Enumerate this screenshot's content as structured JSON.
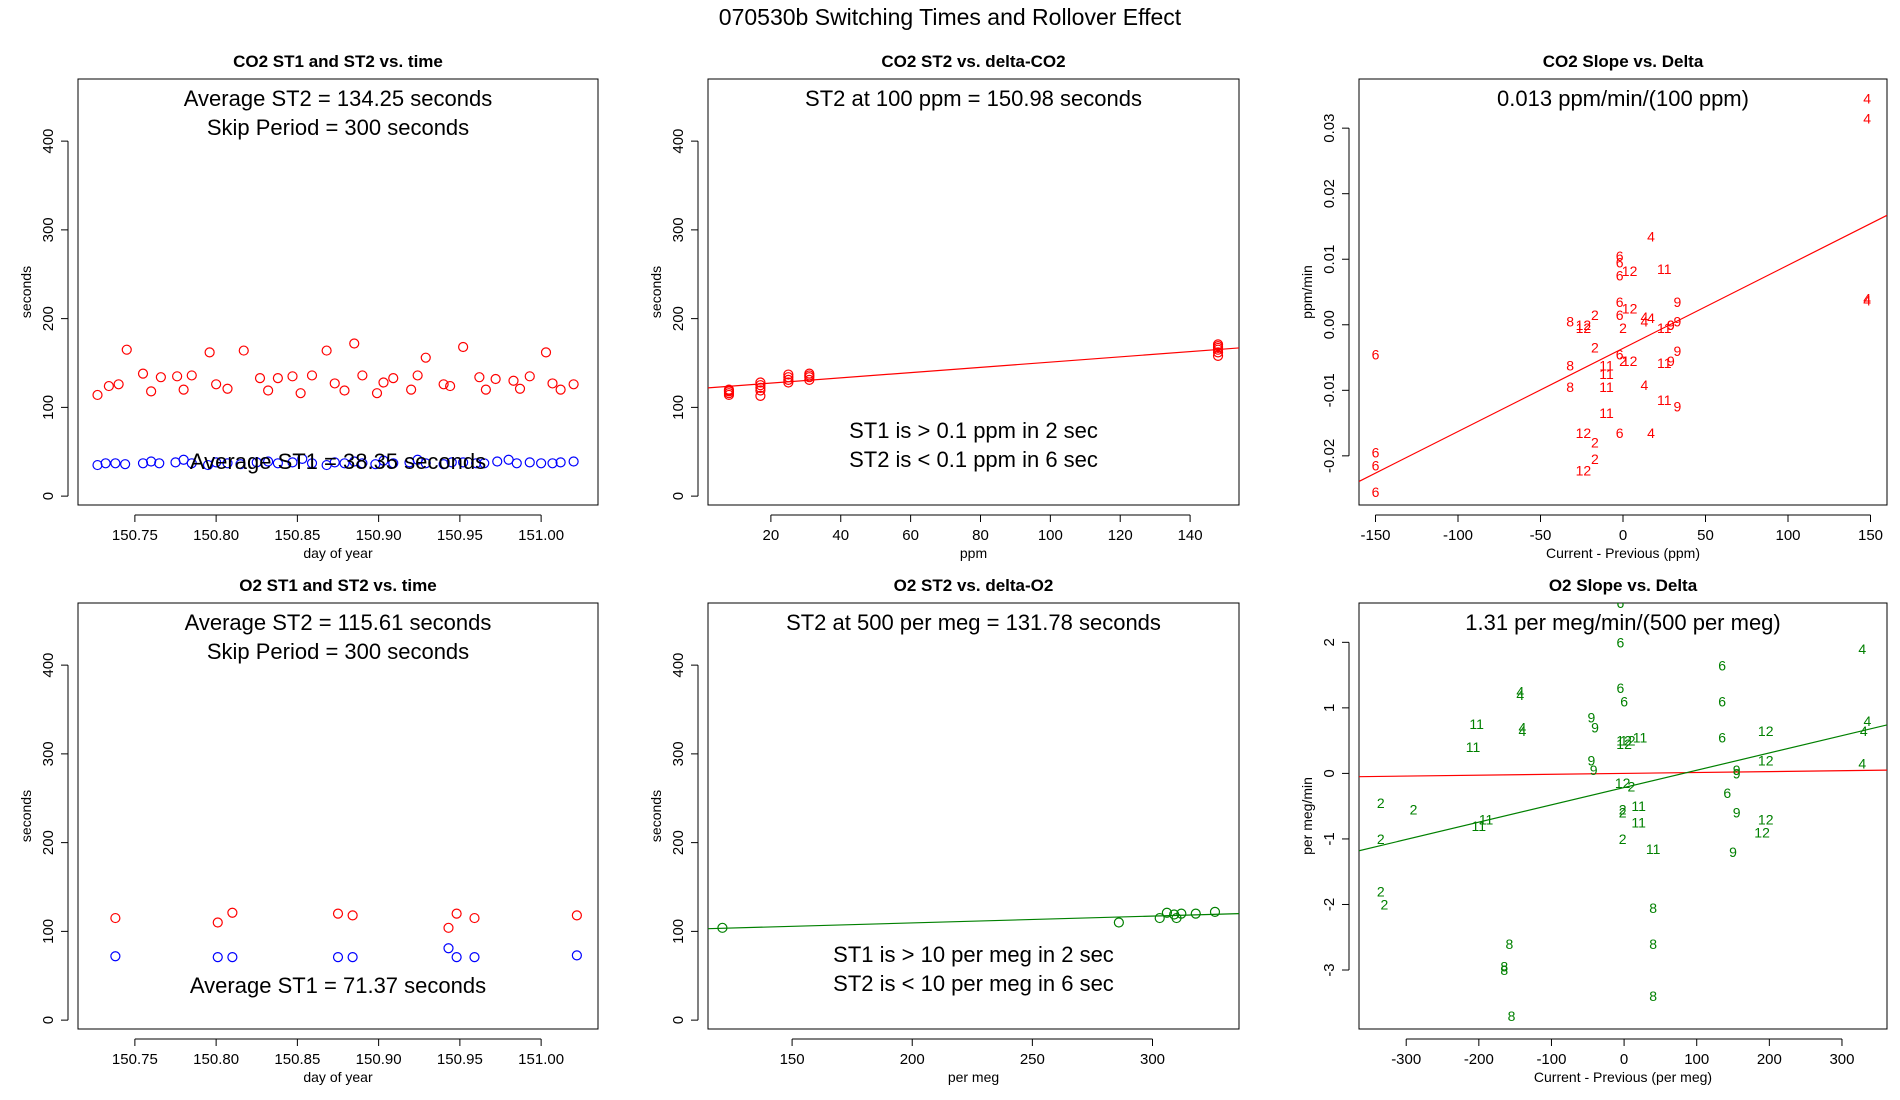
{
  "page": {
    "title": "070530b   Switching Times and Rollover Effect"
  },
  "chart_data": [
    {
      "type": "scatter",
      "title": "CO2 ST1 and ST2 vs. time",
      "xlabel": "day of year",
      "ylabel": "seconds",
      "xlim": [
        150.715,
        151.035
      ],
      "ylim": [
        -10,
        470
      ],
      "xticks": [
        150.75,
        150.8,
        150.85,
        150.9,
        150.95,
        151.0
      ],
      "xtick_labels": [
        "150.75",
        "150.80",
        "150.85",
        "150.90",
        "150.95",
        "151.00"
      ],
      "yticks": [
        0,
        100,
        200,
        300,
        400
      ],
      "ytick_labels": [
        "0",
        "100",
        "200",
        "300",
        "400"
      ],
      "annotations": [
        "Average ST2 =  134.25  seconds",
        "Skip Period =  300  seconds",
        "Average ST1 =  38.35  seconds"
      ],
      "series": [
        {
          "color": "#ff0000",
          "marker": "circle",
          "x": [
            150.727,
            150.734,
            150.74,
            150.745,
            150.755,
            150.76,
            150.766,
            150.776,
            150.78,
            150.785,
            150.796,
            150.8,
            150.807,
            150.817,
            150.827,
            150.832,
            150.838,
            150.847,
            150.852,
            150.859,
            150.868,
            150.873,
            150.879,
            150.885,
            150.89,
            150.899,
            150.903,
            150.909,
            150.92,
            150.924,
            150.929,
            150.94,
            150.944,
            150.952,
            150.962,
            150.966,
            150.972,
            150.983,
            150.987,
            150.993,
            151.003,
            151.007,
            151.012,
            151.02
          ],
          "y": [
            114,
            124,
            126,
            165,
            138,
            118,
            134,
            135,
            120,
            136,
            162,
            126,
            121,
            164,
            133,
            119,
            133,
            135,
            116,
            136,
            164,
            127,
            119,
            172,
            136,
            116,
            128,
            133,
            120,
            136,
            156,
            126,
            124,
            168,
            134,
            120,
            132,
            130,
            121,
            135,
            162,
            127,
            120,
            126
          ]
        },
        {
          "color": "#0000ff",
          "marker": "circle",
          "x": [
            150.727,
            150.732,
            150.738,
            150.744,
            150.755,
            150.76,
            150.765,
            150.775,
            150.78,
            150.785,
            150.795,
            150.8,
            150.807,
            150.815,
            150.825,
            150.832,
            150.838,
            150.847,
            150.853,
            150.859,
            150.868,
            150.873,
            150.879,
            150.885,
            150.89,
            150.898,
            150.903,
            150.909,
            150.919,
            150.924,
            150.929,
            150.94,
            150.945,
            150.952,
            150.96,
            150.965,
            150.973,
            150.98,
            150.985,
            150.993,
            151.0,
            151.007,
            151.012,
            151.02
          ],
          "y": [
            35,
            37,
            37,
            36,
            37,
            39,
            37,
            38,
            41,
            37,
            35,
            38,
            37,
            36,
            38,
            39,
            37,
            38,
            42,
            37,
            35,
            38,
            37,
            39,
            37,
            36,
            40,
            37,
            38,
            41,
            37,
            36,
            38,
            38,
            37,
            37,
            39,
            41,
            37,
            38,
            37,
            37,
            38,
            39
          ]
        }
      ]
    },
    {
      "type": "scatter",
      "title": "CO2 ST2 vs. delta-CO2",
      "xlabel": "ppm",
      "ylabel": "seconds",
      "xlim": [
        2,
        154
      ],
      "ylim": [
        -10,
        470
      ],
      "xticks": [
        20,
        40,
        60,
        80,
        100,
        120,
        140
      ],
      "xtick_labels": [
        "20",
        "40",
        "60",
        "80",
        "100",
        "120",
        "140"
      ],
      "yticks": [
        0,
        100,
        200,
        300,
        400
      ],
      "ytick_labels": [
        "0",
        "100",
        "200",
        "300",
        "400"
      ],
      "annotations": [
        "ST2 at 100 ppm =  150.98  seconds",
        "ST1 is > 0.1 ppm in 2 sec",
        "ST2 is < 0.1 ppm in 6 sec"
      ],
      "series": [
        {
          "color": "#ff0000",
          "marker": "circle",
          "x": [
            8,
            8,
            8,
            8,
            8,
            17,
            17,
            17,
            17,
            17,
            25,
            25,
            25,
            25,
            31,
            31,
            31,
            31,
            148,
            148,
            148,
            148,
            148,
            148
          ],
          "y": [
            114,
            116,
            118,
            119,
            120,
            113,
            119,
            122,
            125,
            128,
            128,
            131,
            134,
            137,
            131,
            134,
            136,
            138,
            158,
            162,
            165,
            167,
            169,
            171
          ]
        }
      ],
      "fit_line": {
        "color": "#ff0000",
        "x": [
          2,
          154
        ],
        "y": [
          122,
          167
        ]
      }
    },
    {
      "type": "scatter",
      "title": "CO2 Slope vs. Delta",
      "xlabel": "Current - Previous (ppm)",
      "ylabel": "ppm/min",
      "xlim": [
        -160,
        160
      ],
      "ylim": [
        -0.0275,
        0.0375
      ],
      "xticks": [
        -150,
        -100,
        -50,
        0,
        50,
        100,
        150
      ],
      "xtick_labels": [
        "-150",
        "-100",
        "-50",
        "0",
        "50",
        "100",
        "150"
      ],
      "yticks": [
        -0.02,
        -0.01,
        0.0,
        0.01,
        0.02,
        0.03
      ],
      "ytick_labels": [
        "-0.02",
        "-0.01",
        "0.00",
        "0.01",
        "0.02",
        "0.03"
      ],
      "annotations": [
        "0.013  ppm/min/(100 ppm)"
      ],
      "series": [
        {
          "color": "#ff0000",
          "marker": "label",
          "x": [
            148,
            148,
            148,
            148,
            17,
            17,
            17,
            -150,
            -150,
            -150,
            -150,
            -2,
            -2,
            -2,
            -2,
            -2,
            -2,
            -2,
            0,
            0,
            -32,
            -32,
            -32,
            -24,
            -24,
            -24,
            -24,
            -17,
            -17,
            -17,
            -17,
            -10,
            -10,
            -10,
            -10,
            4,
            4,
            4,
            13,
            13,
            13,
            29,
            29,
            29,
            33,
            33,
            33,
            33,
            25,
            25,
            25,
            25
          ],
          "y": [
            0.0345,
            0.0315,
            0.004,
            0.0037,
            0.0135,
            0.001,
            -0.0165,
            -0.0045,
            -0.0195,
            -0.0215,
            -0.0255,
            0.0105,
            0.0095,
            0.0075,
            0.0035,
            0.0015,
            -0.0045,
            -0.0165,
            -0.0005,
            -0.0055,
            0.0005,
            -0.0062,
            -0.0095,
            -0.0222,
            0.0,
            -0.0005,
            -0.0165,
            0.0015,
            -0.0035,
            -0.018,
            -0.0205,
            -0.0062,
            -0.0075,
            -0.0095,
            -0.0135,
            0.0082,
            0.0025,
            -0.0055,
            0.0005,
            0.0012,
            -0.0092,
            0.0,
            0.0,
            -0.0055,
            0.0035,
            0.0005,
            -0.004,
            -0.0125,
            0.0085,
            -0.0005,
            -0.0058,
            -0.0115
          ],
          "labels": [
            "4",
            "4",
            "4",
            "4",
            "4",
            "4",
            "4",
            "6",
            "6",
            "6",
            "6",
            "6",
            "6",
            "6",
            "6",
            "6",
            "6",
            "6",
            "2",
            "2",
            "8",
            "8",
            "8",
            "12",
            "12",
            "12",
            "12",
            "2",
            "2",
            "2",
            "2",
            "11",
            "11",
            "11",
            "11",
            "12",
            "12",
            "12",
            "4",
            "4",
            "4",
            "9",
            "9",
            "9",
            "9",
            "9",
            "9",
            "9",
            "11",
            "11",
            "11",
            "11"
          ]
        }
      ],
      "fit_line": {
        "color": "#ff0000",
        "x": [
          -160,
          160
        ],
        "y": [
          -0.0239,
          0.0167
        ]
      }
    },
    {
      "type": "scatter",
      "title": "O2 ST1 and ST2 vs. time",
      "xlabel": "day of year",
      "ylabel": "seconds",
      "xlim": [
        150.715,
        151.035
      ],
      "ylim": [
        -10,
        470
      ],
      "xticks": [
        150.75,
        150.8,
        150.85,
        150.9,
        150.95,
        151.0
      ],
      "xtick_labels": [
        "150.75",
        "150.80",
        "150.85",
        "150.90",
        "150.95",
        "151.00"
      ],
      "yticks": [
        0,
        100,
        200,
        300,
        400
      ],
      "ytick_labels": [
        "0",
        "100",
        "200",
        "300",
        "400"
      ],
      "annotations": [
        "Average ST2 =  115.61  seconds",
        "Skip Period =  300  seconds",
        "Average ST1 =  71.37  seconds"
      ],
      "series": [
        {
          "color": "#ff0000",
          "marker": "circle",
          "x": [
            150.738,
            150.801,
            150.81,
            150.875,
            150.884,
            150.943,
            150.948,
            150.959,
            151.022
          ],
          "y": [
            115,
            110,
            121,
            120,
            118,
            104,
            120,
            115,
            118
          ]
        },
        {
          "color": "#0000ff",
          "marker": "circle",
          "x": [
            150.738,
            150.801,
            150.81,
            150.875,
            150.884,
            150.943,
            150.948,
            150.959,
            151.022
          ],
          "y": [
            72,
            71,
            71,
            71,
            71,
            81,
            71,
            71,
            73
          ]
        }
      ]
    },
    {
      "type": "scatter",
      "title": "O2 ST2 vs. delta-O2",
      "xlabel": "per meg",
      "ylabel": "seconds",
      "xlim": [
        115,
        336
      ],
      "ylim": [
        -10,
        470
      ],
      "xticks": [
        150,
        200,
        250,
        300
      ],
      "xtick_labels": [
        "150",
        "200",
        "250",
        "300"
      ],
      "yticks": [
        0,
        100,
        200,
        300,
        400
      ],
      "ytick_labels": [
        "0",
        "100",
        "200",
        "300",
        "400"
      ],
      "annotations": [
        "ST2 at 500 per meg =  131.78  seconds",
        "ST1 is > 10 per meg in 2 sec",
        "ST2 is < 10 per meg in 6 sec"
      ],
      "series": [
        {
          "color": "#008000",
          "marker": "circle",
          "x": [
            121,
            286,
            303,
            306,
            309,
            310,
            312,
            318,
            326
          ],
          "y": [
            104,
            110,
            115,
            121,
            119,
            115,
            120,
            120,
            122
          ]
        }
      ],
      "fit_line": {
        "color": "#008000",
        "x": [
          115,
          336
        ],
        "y": [
          103,
          120
        ]
      }
    },
    {
      "type": "scatter",
      "title": "O2 Slope vs. Delta",
      "xlabel": "Current - Previous (per meg)",
      "ylabel": "per meg/min",
      "xlim": [
        -365,
        362
      ],
      "ylim": [
        -3.9,
        2.6
      ],
      "xticks": [
        -300,
        -200,
        -100,
        0,
        100,
        200,
        300
      ],
      "xtick_labels": [
        "-300",
        "-200",
        "-100",
        "0",
        "100",
        "200",
        "300"
      ],
      "yticks": [
        -3,
        -2,
        -1,
        0,
        1,
        2
      ],
      "ytick_labels": [
        "-3",
        "-2",
        "-1",
        "0",
        "1",
        "2"
      ],
      "annotations": [
        "1.31  per meg/min/(500 per meg)"
      ],
      "series": [
        {
          "color": "#008000",
          "marker": "label",
          "x": [
            -335,
            -335,
            -335,
            -330,
            -290,
            -203,
            -208,
            -190,
            -200,
            -158,
            -165,
            -165,
            -155,
            -143,
            -143,
            -140,
            -140,
            -45,
            -40,
            -45,
            -42,
            -5,
            -5,
            -5,
            0,
            0,
            0,
            -2,
            -2,
            -2,
            -2,
            5,
            10,
            22,
            20,
            20,
            40,
            40,
            40,
            40,
            135,
            135,
            135,
            142,
            155,
            155,
            155,
            150,
            195,
            195,
            195,
            190,
            328,
            335,
            330,
            328
          ],
          "y": [
            -0.45,
            -1.0,
            -1.8,
            -2.0,
            -0.55,
            0.75,
            0.4,
            -0.7,
            -0.8,
            -2.6,
            -2.95,
            -3.0,
            -3.7,
            1.25,
            1.2,
            0.7,
            0.65,
            0.85,
            0.7,
            0.2,
            0.05,
            2.6,
            2.0,
            1.3,
            1.1,
            0.5,
            0.45,
            -0.15,
            -0.55,
            -1.0,
            -0.6,
            0.5,
            -0.2,
            0.55,
            -0.5,
            -0.75,
            -1.15,
            -2.05,
            -2.6,
            -3.4,
            1.65,
            1.1,
            0.55,
            -0.3,
            0.0,
            0.05,
            -0.6,
            -1.2,
            0.65,
            0.2,
            -0.7,
            -0.9,
            1.9,
            0.8,
            0.65,
            0.15
          ],
          "labels": [
            "2",
            "2",
            "2",
            "2",
            "2",
            "11",
            "11",
            "11",
            "11",
            "8",
            "8",
            "8",
            "8",
            "4",
            "4",
            "4",
            "4",
            "9",
            "9",
            "9",
            "9",
            "6",
            "6",
            "6",
            "6",
            "12",
            "12",
            "12",
            "2",
            "2",
            "2",
            "12",
            "2",
            "11",
            "11",
            "11",
            "11",
            "8",
            "8",
            "8",
            "6",
            "6",
            "6",
            "6",
            "9",
            "9",
            "9",
            "9",
            "12",
            "12",
            "12",
            "12",
            "4",
            "4",
            "4",
            "4"
          ]
        }
      ],
      "fit_line": {
        "color": "#008000",
        "x": [
          -365,
          362
        ],
        "y": [
          -1.18,
          0.74
        ]
      },
      "reference_line": {
        "color": "#ff0000",
        "x": [
          -365,
          362
        ],
        "y": [
          -0.05,
          0.05
        ]
      }
    }
  ]
}
